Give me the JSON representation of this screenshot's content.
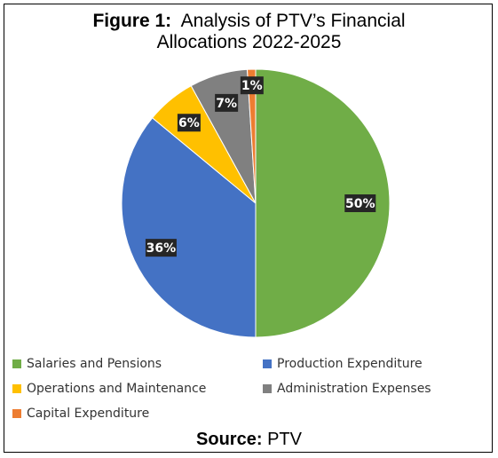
{
  "figure": {
    "title_prefix": "Figure 1:",
    "title_line1": "Analysis of PTV’s Financial",
    "title_line2": "Allocations 2022-2025",
    "source_label": "Source:",
    "source_value": "PTV"
  },
  "chart_data": {
    "type": "pie",
    "slices": [
      {
        "name": "Salaries and Pensions",
        "value": 50,
        "label": "50%",
        "color": "#70ad47"
      },
      {
        "name": "Production Expenditure",
        "value": 36,
        "label": "36%",
        "color": "#4472c4"
      },
      {
        "name": "Operations and Maintenance",
        "value": 6,
        "label": "6%",
        "color": "#ffc000"
      },
      {
        "name": "Administration Expenses",
        "value": 7,
        "label": "7%",
        "color": "#808080"
      },
      {
        "name": "Capital Expenditure",
        "value": 1,
        "label": "1%",
        "color": "#ed7d31"
      }
    ],
    "legend_position": "bottom"
  }
}
